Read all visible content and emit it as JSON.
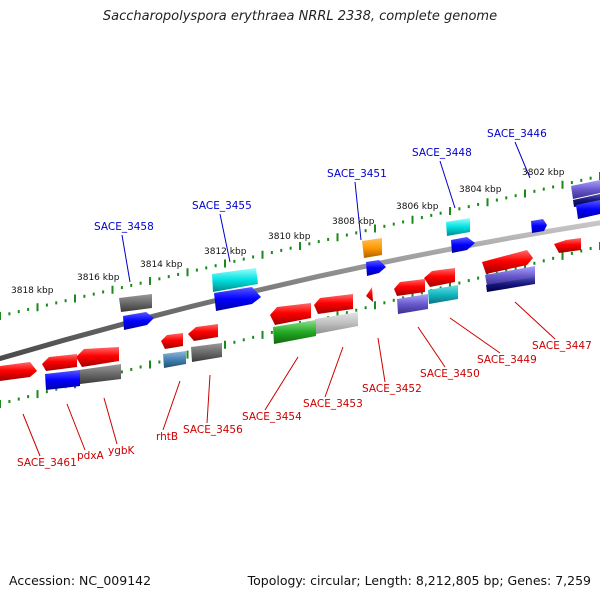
{
  "title": "Saccharopolyspora erythraea NRRL 2338, complete genome",
  "footer": {
    "accession": "Accession: NC_009142",
    "summary": "Topology: circular; Length: 8,212,805 bp; Genes: 7,259"
  },
  "colors": {
    "backbone": "#888888",
    "tick": "#1a8a1a",
    "label_forward": "#0000cc",
    "label_reverse": "#cc0000",
    "scale_text": "#111111"
  },
  "scale_labels": [
    "3802 kbp",
    "3804 kbp",
    "3806 kbp",
    "3808 kbp",
    "3810 kbp",
    "3812 kbp",
    "3814 kbp",
    "3816 kbp",
    "3818 kbp"
  ],
  "labels_top": [
    "SACE_3446",
    "SACE_3448",
    "SACE_3451",
    "SACE_3455",
    "SACE_3458"
  ],
  "labels_bottom": [
    "SACE_3447",
    "SACE_3449",
    "SACE_3450",
    "SACE_3452",
    "SACE_3453",
    "SACE_3454",
    "SACE_3456",
    "rhtB",
    "ygbK",
    "pdxA",
    "SACE_3461"
  ]
}
